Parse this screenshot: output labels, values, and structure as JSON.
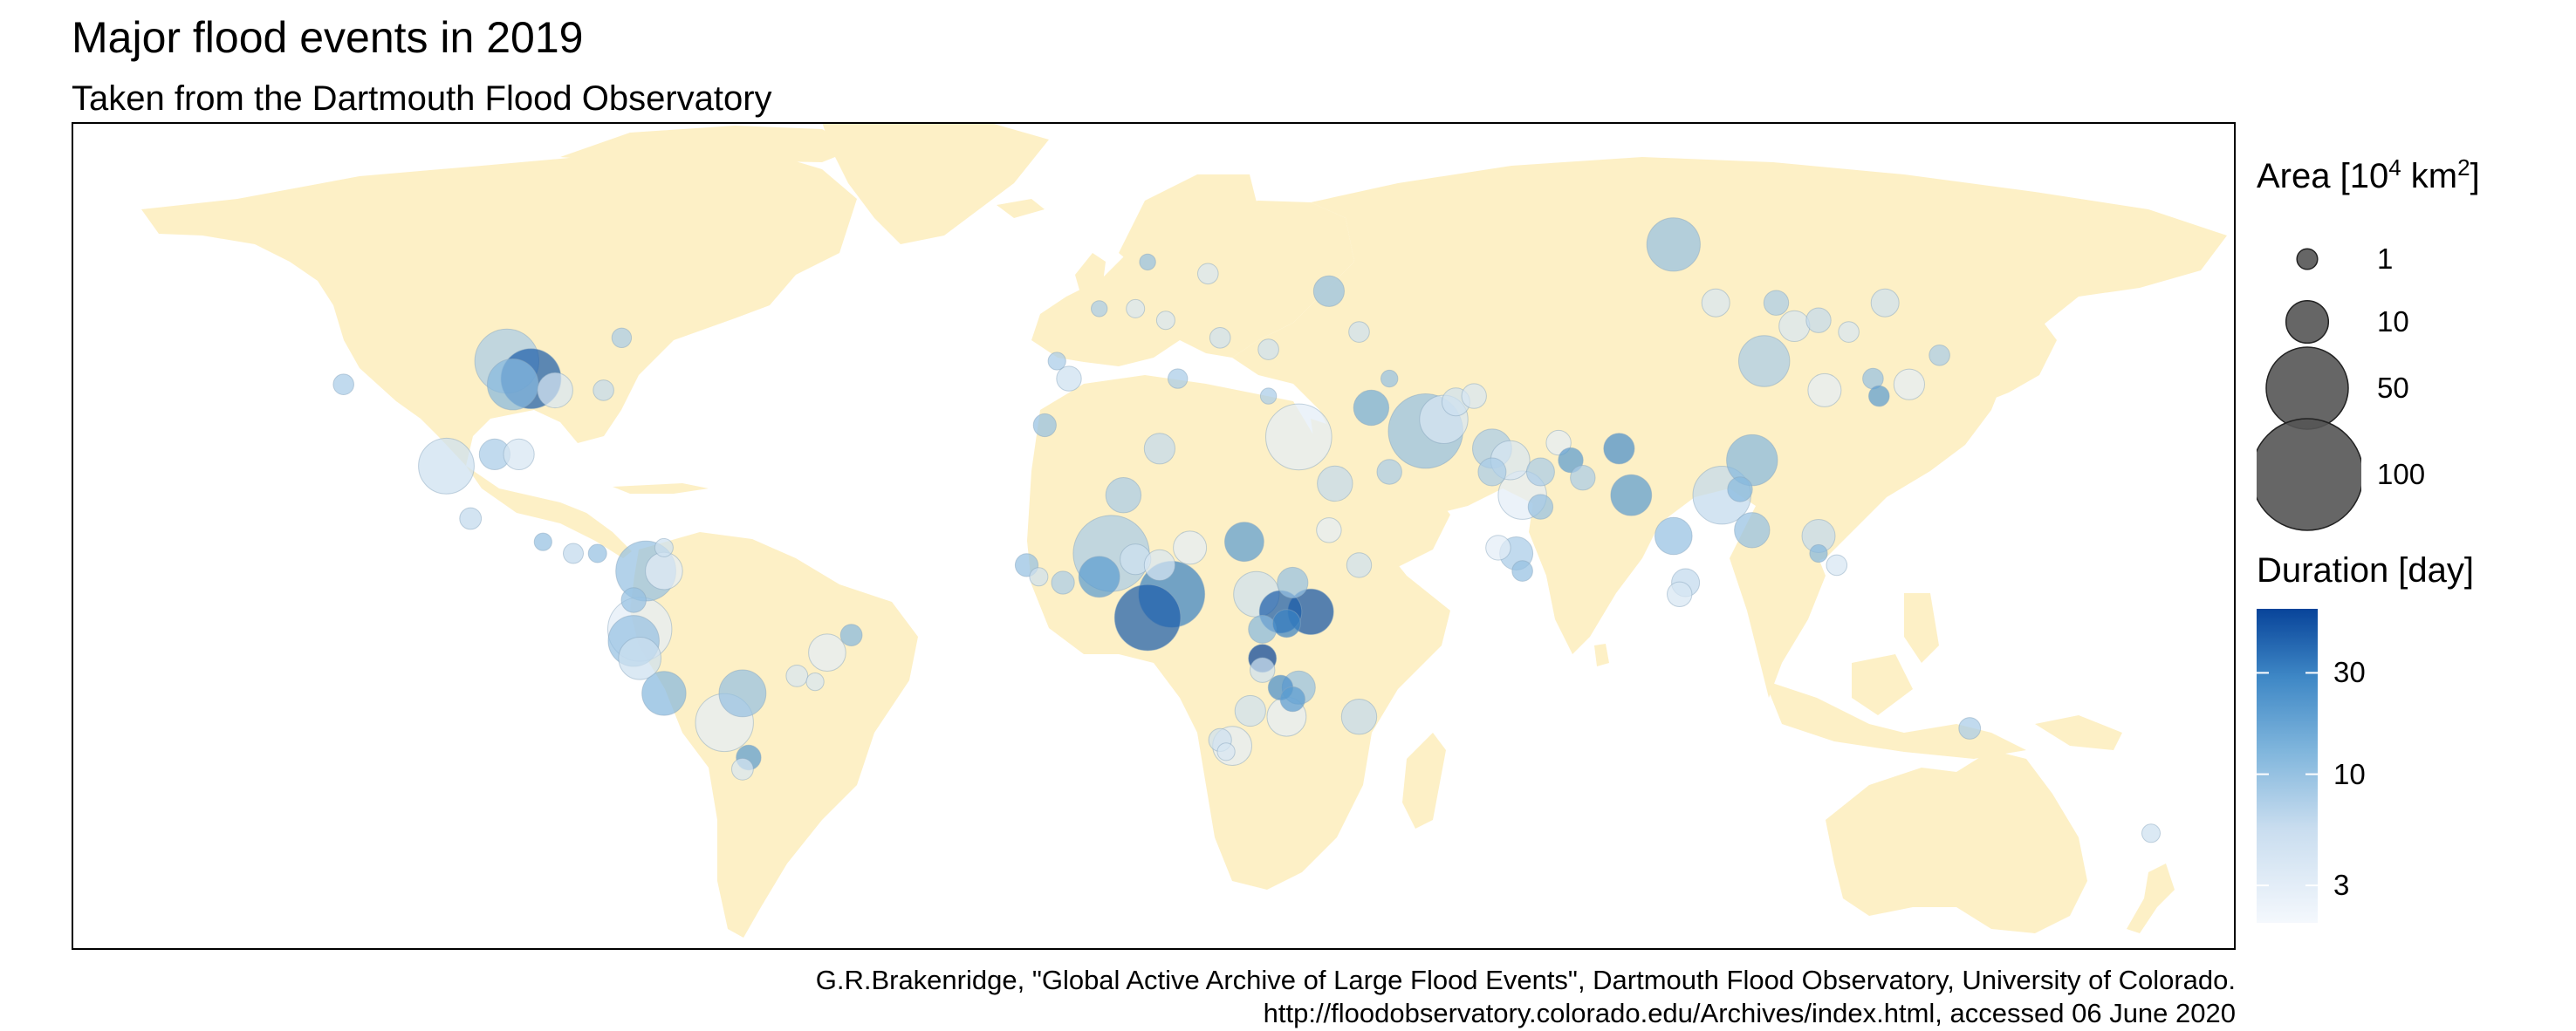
{
  "header": {
    "title": "Major flood events in 2019",
    "subtitle": "Taken from the Dartmouth Flood Observatory"
  },
  "colors": {
    "land": "#fdf0c6",
    "frame": "#000000",
    "size_legend_fill": "#555555",
    "duration_low": "#f4f8fd",
    "duration_high": "#08449a"
  },
  "legend": {
    "area": {
      "title_prefix": "Area [10",
      "title_exp1": "4",
      "title_mid": " km",
      "title_exp2": "2",
      "title_suffix": "]",
      "labels": [
        "1",
        "10",
        "50",
        "100"
      ],
      "values": [
        1,
        10,
        50,
        100
      ]
    },
    "duration": {
      "title": "Duration [day]",
      "ticks": [
        "30",
        "10",
        "3"
      ],
      "tick_values": [
        30,
        10,
        3
      ],
      "range": [
        2,
        60
      ],
      "scale": "log"
    }
  },
  "caption": {
    "line1": "G.R.Brakenridge, \"Global Active Archive of Large Flood Events\", Dartmouth Flood Observatory, University of Colorado.",
    "line2": "http://floodobservatory.colorado.edu/Archives/index.html, accessed 06 June 2020"
  },
  "chart_data": {
    "type": "scatter",
    "x_field": "longitude",
    "y_field": "latitude",
    "size_field": "area_1e4_km2",
    "color_field": "duration_days",
    "points": [
      {
        "lon": -96,
        "lat": 43,
        "area": 28,
        "duration": 8
      },
      {
        "lon": -92,
        "lat": 40,
        "area": 24,
        "duration": 45
      },
      {
        "lon": -95,
        "lat": 39,
        "area": 16,
        "duration": 12
      },
      {
        "lon": -88,
        "lat": 38,
        "area": 6,
        "duration": 4
      },
      {
        "lon": -80,
        "lat": 38,
        "area": 1,
        "duration": 6
      },
      {
        "lon": -77,
        "lat": 47,
        "area": 0.8,
        "duration": 8
      },
      {
        "lon": -123,
        "lat": 39,
        "area": 1,
        "duration": 8
      },
      {
        "lon": -106,
        "lat": 25,
        "area": 20,
        "duration": 5
      },
      {
        "lon": -98,
        "lat": 27,
        "area": 4,
        "duration": 8
      },
      {
        "lon": -94,
        "lat": 27,
        "area": 4,
        "duration": 4
      },
      {
        "lon": -102,
        "lat": 16,
        "area": 1.2,
        "duration": 6
      },
      {
        "lon": -90,
        "lat": 12,
        "area": 0.5,
        "duration": 10
      },
      {
        "lon": -85,
        "lat": 10,
        "area": 0.9,
        "duration": 6
      },
      {
        "lon": -81,
        "lat": 10,
        "area": 0.6,
        "duration": 10
      },
      {
        "lon": -73,
        "lat": 7,
        "area": 24,
        "duration": 10
      },
      {
        "lon": -70,
        "lat": 7,
        "area": 7,
        "duration": 3
      },
      {
        "lon": -75,
        "lat": 2,
        "area": 2,
        "duration": 10
      },
      {
        "lon": -74,
        "lat": -3,
        "area": 28,
        "duration": 3
      },
      {
        "lon": -75,
        "lat": -5,
        "area": 16,
        "duration": 10
      },
      {
        "lon": -74,
        "lat": -8,
        "area": 10,
        "duration": 5
      },
      {
        "lon": -70,
        "lat": 11,
        "area": 0.6,
        "duration": 5
      },
      {
        "lon": -70,
        "lat": -14,
        "area": 11,
        "duration": 12
      },
      {
        "lon": -60,
        "lat": -19,
        "area": 22,
        "duration": 3
      },
      {
        "lon": -57,
        "lat": -14,
        "area": 13,
        "duration": 10
      },
      {
        "lon": -56,
        "lat": -25,
        "area": 2,
        "duration": 20
      },
      {
        "lon": -57,
        "lat": -27,
        "area": 1.2,
        "duration": 4
      },
      {
        "lon": -48,
        "lat": -11,
        "area": 1.2,
        "duration": 4
      },
      {
        "lon": -43,
        "lat": -7,
        "area": 7,
        "duration": 3
      },
      {
        "lon": -39,
        "lat": -4,
        "area": 1.2,
        "duration": 12
      },
      {
        "lon": -45,
        "lat": -12,
        "area": 0.5,
        "duration": 4
      },
      {
        "lon": -10,
        "lat": 8,
        "area": 1.5,
        "duration": 10
      },
      {
        "lon": -7,
        "lat": 32,
        "area": 1.5,
        "duration": 10
      },
      {
        "lon": 4,
        "lat": 10,
        "area": 42,
        "duration": 8
      },
      {
        "lon": 2,
        "lat": 6,
        "area": 9,
        "duration": 20
      },
      {
        "lon": 8,
        "lat": 9,
        "area": 4,
        "duration": 5
      },
      {
        "lon": -4,
        "lat": 5,
        "area": 1.5,
        "duration": 8
      },
      {
        "lon": -8,
        "lat": 6,
        "area": 0.6,
        "duration": 5
      },
      {
        "lon": 14,
        "lat": 3,
        "area": 30,
        "duration": 30
      },
      {
        "lon": 10,
        "lat": -1,
        "area": 30,
        "duration": 45
      },
      {
        "lon": 12,
        "lat": 8,
        "area": 4,
        "duration": 4
      },
      {
        "lon": 6,
        "lat": 20,
        "area": 6,
        "duration": 8
      },
      {
        "lon": 17,
        "lat": 11,
        "area": 5,
        "duration": 3
      },
      {
        "lon": 26,
        "lat": 12,
        "area": 8,
        "duration": 20
      },
      {
        "lon": 28,
        "lat": 3,
        "area": 12,
        "duration": 5
      },
      {
        "lon": 29,
        "lat": -3,
        "area": 3,
        "duration": 12
      },
      {
        "lon": 32,
        "lat": 0,
        "area": 10,
        "duration": 45
      },
      {
        "lon": 37,
        "lat": 0,
        "area": 12,
        "duration": 50
      },
      {
        "lon": 33,
        "lat": -2,
        "area": 3,
        "duration": 30
      },
      {
        "lon": 34,
        "lat": 5,
        "area": 4,
        "duration": 10
      },
      {
        "lon": 29,
        "lat": -8,
        "area": 3,
        "duration": 60
      },
      {
        "lon": 29,
        "lat": -10,
        "area": 2,
        "duration": 5
      },
      {
        "lon": 32,
        "lat": -13,
        "area": 2,
        "duration": 25
      },
      {
        "lon": 34,
        "lat": -15,
        "area": 2,
        "duration": 20
      },
      {
        "lon": 35,
        "lat": -13,
        "area": 5,
        "duration": 10
      },
      {
        "lon": 33,
        "lat": -18,
        "area": 8,
        "duration": 3
      },
      {
        "lon": 27,
        "lat": -17,
        "area": 4,
        "duration": 5
      },
      {
        "lon": 24,
        "lat": -23,
        "area": 8,
        "duration": 3
      },
      {
        "lon": 22,
        "lat": -22,
        "area": 1.5,
        "duration": 5
      },
      {
        "lon": 23,
        "lat": -24,
        "area": 0.5,
        "duration": 4
      },
      {
        "lon": 45,
        "lat": -18,
        "area": 6,
        "duration": 6
      },
      {
        "lon": 45,
        "lat": 8,
        "area": 2,
        "duration": 5
      },
      {
        "lon": 40,
        "lat": 14,
        "area": 2,
        "duration": 3
      },
      {
        "lon": 12,
        "lat": 28,
        "area": 4,
        "duration": 6
      },
      {
        "lon": 41,
        "lat": 22,
        "area": 6,
        "duration": 6
      },
      {
        "lon": 35,
        "lat": 30,
        "area": 30,
        "duration": 3
      },
      {
        "lon": 47,
        "lat": 35,
        "area": 6,
        "duration": 15
      },
      {
        "lon": 50,
        "lat": 24,
        "area": 2,
        "duration": 8
      },
      {
        "lon": 56,
        "lat": 31,
        "area": 40,
        "duration": 10
      },
      {
        "lon": 59,
        "lat": 33,
        "area": 14,
        "duration": 4
      },
      {
        "lon": 61,
        "lat": 36,
        "area": 3,
        "duration": 5
      },
      {
        "lon": 64,
        "lat": 37,
        "area": 2,
        "duration": 4
      },
      {
        "lon": 67,
        "lat": 28,
        "area": 8,
        "duration": 8
      },
      {
        "lon": 70,
        "lat": 26,
        "area": 8,
        "duration": 4
      },
      {
        "lon": 72,
        "lat": 20,
        "area": 14,
        "duration": 3
      },
      {
        "lon": 67,
        "lat": 24,
        "area": 3,
        "duration": 8
      },
      {
        "lon": 75,
        "lat": 24,
        "area": 3,
        "duration": 8
      },
      {
        "lon": 78,
        "lat": 29,
        "area": 2,
        "duration": 3
      },
      {
        "lon": 80,
        "lat": 26,
        "area": 2,
        "duration": 20
      },
      {
        "lon": 88,
        "lat": 28,
        "area": 4,
        "duration": 25
      },
      {
        "lon": 90,
        "lat": 20,
        "area": 9,
        "duration": 20
      },
      {
        "lon": 75,
        "lat": 18,
        "area": 2,
        "duration": 10
      },
      {
        "lon": 82,
        "lat": 23,
        "area": 2,
        "duration": 8
      },
      {
        "lon": 68,
        "lat": 11,
        "area": 2,
        "duration": 3
      },
      {
        "lon": 71,
        "lat": 10,
        "area": 5,
        "duration": 8
      },
      {
        "lon": 72,
        "lat": 7,
        "area": 1,
        "duration": 10
      },
      {
        "lon": 97,
        "lat": 13,
        "area": 7,
        "duration": 10
      },
      {
        "lon": 99,
        "lat": 5,
        "area": 3,
        "duration": 6
      },
      {
        "lon": 98,
        "lat": 3,
        "area": 2,
        "duration": 4
      },
      {
        "lon": 105,
        "lat": 20,
        "area": 22,
        "duration": 6
      },
      {
        "lon": 110,
        "lat": 26,
        "area": 16,
        "duration": 12
      },
      {
        "lon": 108,
        "lat": 21,
        "area": 2,
        "duration": 12
      },
      {
        "lon": 110,
        "lat": 14,
        "area": 6,
        "duration": 10
      },
      {
        "lon": 112,
        "lat": 43,
        "area": 16,
        "duration": 8
      },
      {
        "lon": 117,
        "lat": 49,
        "area": 4,
        "duration": 4
      },
      {
        "lon": 121,
        "lat": 50,
        "area": 2,
        "duration": 6
      },
      {
        "lon": 122,
        "lat": 38,
        "area": 5,
        "duration": 3
      },
      {
        "lon": 126,
        "lat": 48,
        "area": 1,
        "duration": 4
      },
      {
        "lon": 130,
        "lat": 40,
        "area": 1,
        "duration": 10
      },
      {
        "lon": 131,
        "lat": 37,
        "area": 1,
        "duration": 20
      },
      {
        "lon": 121,
        "lat": 13,
        "area": 5,
        "duration": 6
      },
      {
        "lon": 124,
        "lat": 8,
        "area": 1,
        "duration": 4
      },
      {
        "lon": 121,
        "lat": 10,
        "area": 0.5,
        "duration": 12
      },
      {
        "lon": 136,
        "lat": 39,
        "area": 4,
        "duration": 3
      },
      {
        "lon": 141,
        "lat": 44,
        "area": 1,
        "duration": 8
      },
      {
        "lon": 97,
        "lat": 63,
        "area": 18,
        "duration": 10
      },
      {
        "lon": 104,
        "lat": 53,
        "area": 3,
        "duration": 4
      },
      {
        "lon": 114,
        "lat": 53,
        "area": 2,
        "duration": 8
      },
      {
        "lon": 132,
        "lat": 53,
        "area": 3,
        "duration": 5
      },
      {
        "lon": 40,
        "lat": 55,
        "area": 4,
        "duration": 10
      },
      {
        "lon": 20,
        "lat": 58,
        "area": 1,
        "duration": 4
      },
      {
        "lon": 10,
        "lat": 60,
        "area": 0.3,
        "duration": 10
      },
      {
        "lon": 2,
        "lat": 52,
        "area": 0.3,
        "duration": 8
      },
      {
        "lon": 8,
        "lat": 52,
        "area": 0.6,
        "duration": 4
      },
      {
        "lon": 13,
        "lat": 50,
        "area": 0.6,
        "duration": 4
      },
      {
        "lon": 22,
        "lat": 47,
        "area": 1,
        "duration": 5
      },
      {
        "lon": 30,
        "lat": 45,
        "area": 1,
        "duration": 5
      },
      {
        "lon": 45,
        "lat": 48,
        "area": 1,
        "duration": 5
      },
      {
        "lon": 15,
        "lat": 40,
        "area": 0.8,
        "duration": 8
      },
      {
        "lon": -3,
        "lat": 40,
        "area": 2,
        "duration": 5
      },
      {
        "lon": -5,
        "lat": 43,
        "area": 0.5,
        "duration": 8
      },
      {
        "lon": 50,
        "lat": 40,
        "area": 0.4,
        "duration": 10
      },
      {
        "lon": 30,
        "lat": 37,
        "area": 0.3,
        "duration": 8
      },
      {
        "lon": 146,
        "lat": -20,
        "area": 1.2,
        "duration": 8
      },
      {
        "lon": 176,
        "lat": -38,
        "area": 0.6,
        "duration": 5
      }
    ]
  }
}
